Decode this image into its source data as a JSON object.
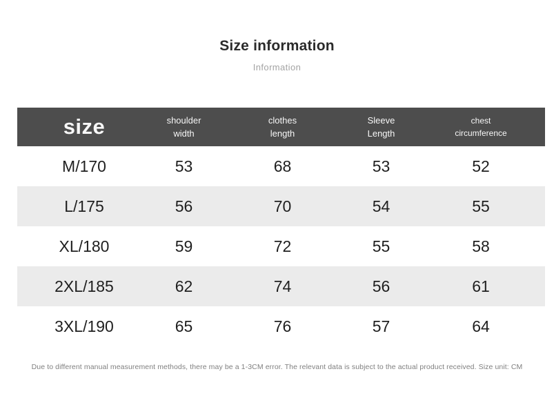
{
  "colors": {
    "header_bg": "#4d4d4d",
    "header_text": "#f7f7f7",
    "stripe": "#ebebeb",
    "body_text": "#1f1f1f",
    "title": "#2b2b2b",
    "subtitle": "#a3a3a3",
    "note": "#7f7f7f",
    "page_bg": "#ffffff"
  },
  "title": {
    "heading": "Size information",
    "subheading": "Information"
  },
  "table": {
    "columns": [
      {
        "id": "size",
        "label": "size"
      },
      {
        "id": "shoulder-width",
        "line1": "shoulder",
        "line2": "width"
      },
      {
        "id": "clothes-length",
        "line1": "clothes",
        "line2": "length"
      },
      {
        "id": "sleeve-length",
        "line1": "Sleeve",
        "line2": "Length"
      },
      {
        "id": "chest-circumference",
        "line1": "chest",
        "line2": "circumference"
      }
    ],
    "rows": [
      {
        "size": "M/170",
        "values": [
          "53",
          "68",
          "53",
          "52"
        ]
      },
      {
        "size": "L/175",
        "values": [
          "56",
          "70",
          "54",
          "55"
        ]
      },
      {
        "size": "XL/180",
        "values": [
          "59",
          "72",
          "55",
          "58"
        ]
      },
      {
        "size": "2XL/185",
        "values": [
          "62",
          "74",
          "56",
          "61"
        ]
      },
      {
        "size": "3XL/190",
        "values": [
          "65",
          "76",
          "57",
          "64"
        ]
      }
    ]
  },
  "footer": {
    "note": "Due to different manual measurement methods, there may be a 1-3CM error. The relevant data is subject to the actual product received. Size unit: CM"
  }
}
